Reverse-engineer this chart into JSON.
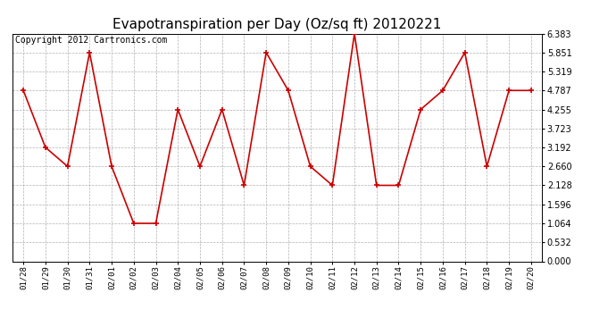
{
  "title": "Evapotranspiration per Day (Oz/sq ft) 20120221",
  "copyright": "Copyright 2012 Cartronics.com",
  "dates": [
    "01/28",
    "01/29",
    "01/30",
    "01/31",
    "02/01",
    "02/02",
    "02/03",
    "02/04",
    "02/05",
    "02/06",
    "02/07",
    "02/08",
    "02/09",
    "02/10",
    "02/11",
    "02/12",
    "02/13",
    "02/14",
    "02/15",
    "02/16",
    "02/17",
    "02/18",
    "02/19",
    "02/20"
  ],
  "values": [
    4.787,
    3.192,
    2.66,
    5.851,
    2.66,
    1.064,
    1.064,
    4.255,
    2.66,
    4.255,
    2.128,
    5.851,
    4.787,
    2.66,
    2.128,
    6.383,
    2.128,
    2.128,
    4.255,
    4.787,
    5.851,
    2.66,
    4.787,
    4.787
  ],
  "ymin": 0.0,
  "ymax": 6.383,
  "yticks": [
    0.0,
    0.532,
    1.064,
    1.596,
    2.128,
    2.66,
    3.192,
    3.723,
    4.255,
    4.787,
    5.319,
    5.851,
    6.383
  ],
  "line_color": "#cc0000",
  "marker_color": "#cc0000",
  "background_color": "#ffffff",
  "grid_color": "#b0b0b0",
  "title_fontsize": 11,
  "copyright_fontsize": 7,
  "figsize": [
    6.9,
    3.75
  ],
  "dpi": 100
}
